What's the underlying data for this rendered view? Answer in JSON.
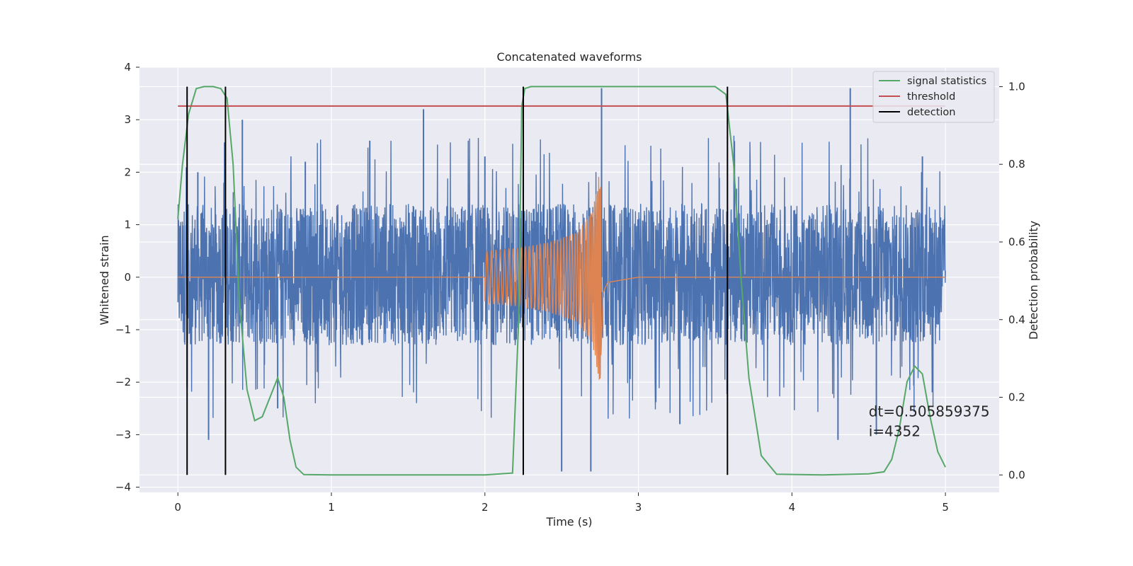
{
  "chart_data": {
    "type": "line",
    "title": "Concatenated waveforms",
    "xlabel": "Time (s)",
    "ylabel": "Whitened strain",
    "y2label": "Detection probability",
    "xlim": [
      -0.25,
      5.35
    ],
    "ylim": [
      -4.1,
      4.0
    ],
    "y2lim": [
      -0.045,
      1.05
    ],
    "xticks": [
      0,
      1,
      2,
      3,
      4,
      5
    ],
    "yticks": [
      -4,
      -3,
      -2,
      -1,
      0,
      1,
      2,
      3,
      4
    ],
    "y2ticks": [
      0.0,
      0.2,
      0.4,
      0.6,
      0.8,
      1.0
    ],
    "grid": true,
    "background": "#eaeaf2",
    "legend_position": "top-right",
    "legend": [
      {
        "label": "signal statistics",
        "color": "#55a868"
      },
      {
        "label": "threshold",
        "color": "#c44e52"
      },
      {
        "label": "detection",
        "color": "#000000"
      }
    ],
    "series": [
      {
        "name": "",
        "kind": "noise",
        "axis": "left",
        "color": "#4c72b0",
        "x_range": [
          0,
          5
        ],
        "typical_amplitude": [
          -1.3,
          1.4
        ],
        "peaks": [
          [
            0.06,
            -2.1
          ],
          [
            0.13,
            2.0
          ],
          [
            0.2,
            -3.1
          ],
          [
            0.3,
            1.8
          ],
          [
            0.42,
            3.0
          ],
          [
            0.65,
            -2.5
          ],
          [
            0.83,
            2.2
          ],
          [
            1.25,
            2.6
          ],
          [
            1.6,
            3.2
          ],
          [
            2.0,
            2.3
          ],
          [
            2.5,
            -3.7
          ],
          [
            2.69,
            -3.7
          ],
          [
            2.76,
            3.6
          ],
          [
            3.27,
            -2.8
          ],
          [
            4.3,
            -3.1
          ],
          [
            4.38,
            3.6
          ],
          [
            4.55,
            -3.0
          ],
          [
            4.85,
            2.3
          ]
        ]
      },
      {
        "name": "",
        "kind": "chirp",
        "axis": "left",
        "color": "#dd8452",
        "x": [
          0.0,
          2.0,
          2.2,
          2.4,
          2.6,
          2.7,
          2.75,
          2.77,
          2.8,
          3.0,
          5.0
        ],
        "envelope": [
          0.0,
          0.5,
          0.55,
          0.65,
          0.85,
          1.25,
          2.05,
          0.3,
          0.1,
          0.0,
          0.0
        ]
      },
      {
        "name": "signal statistics",
        "kind": "line",
        "axis": "right",
        "color": "#55a868",
        "x": [
          0.0,
          0.03,
          0.07,
          0.12,
          0.17,
          0.23,
          0.28,
          0.32,
          0.36,
          0.4,
          0.45,
          0.5,
          0.55,
          0.6,
          0.65,
          0.69,
          0.73,
          0.77,
          0.82,
          1.0,
          2.0,
          2.18,
          2.22,
          2.24,
          2.26,
          2.3,
          2.5,
          3.0,
          3.5,
          3.57,
          3.62,
          3.67,
          3.72,
          3.8,
          3.9,
          4.2,
          4.5,
          4.6,
          4.65,
          4.7,
          4.75,
          4.8,
          4.85,
          4.9,
          4.95,
          5.0
        ],
        "values": [
          0.66,
          0.8,
          0.93,
          0.995,
          1.0,
          1.0,
          0.995,
          0.97,
          0.8,
          0.45,
          0.22,
          0.14,
          0.15,
          0.2,
          0.25,
          0.2,
          0.09,
          0.02,
          0.001,
          0.0,
          0.0,
          0.005,
          0.4,
          0.95,
          0.995,
          1.0,
          1.0,
          1.0,
          1.0,
          0.98,
          0.8,
          0.5,
          0.25,
          0.05,
          0.002,
          0.0,
          0.003,
          0.008,
          0.04,
          0.12,
          0.24,
          0.28,
          0.26,
          0.15,
          0.06,
          0.02
        ]
      },
      {
        "name": "threshold",
        "kind": "hline",
        "axis": "right",
        "color": "#c44e52",
        "x": [
          0,
          5
        ],
        "values": [
          0.95,
          0.95
        ]
      }
    ],
    "detections": [
      0.06,
      0.31,
      2.25,
      3.58
    ],
    "detection_range": [
      0.0,
      1.0
    ],
    "annotation": "dt=0.505859375\n i=4352",
    "annotation_position": [
      4.5,
      0.1
    ]
  }
}
